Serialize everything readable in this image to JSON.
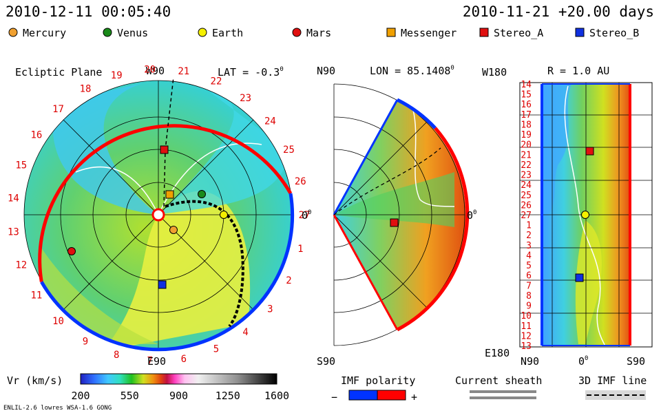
{
  "header": {
    "datetime": "2010-12-11 00:05:40",
    "run_label": "2010-11-21 +20.00 days"
  },
  "legend": [
    {
      "name": "Mercury",
      "color": "#f0a030",
      "shape": "circle"
    },
    {
      "name": "Venus",
      "color": "#1a8a1a",
      "shape": "circle"
    },
    {
      "name": "Earth",
      "color": "#f5f000",
      "shape": "circle"
    },
    {
      "name": "Mars",
      "color": "#e01010",
      "shape": "circle"
    },
    {
      "name": "Messenger",
      "color": "#f0a000",
      "shape": "square"
    },
    {
      "name": "Stereo_A",
      "color": "#e01010",
      "shape": "square"
    },
    {
      "name": "Stereo_B",
      "color": "#1030e0",
      "shape": "square"
    }
  ],
  "panels": {
    "ecliptic": {
      "title": "Ecliptic Plane",
      "top": "W90",
      "bottom": "E90",
      "right": "0",
      "right_sup": "0",
      "lat_label": "LAT = -0.3",
      "lat_sup": "0"
    },
    "meridional": {
      "top": "N90",
      "bottom": "S90",
      "lon_label": "LON = 85.1408",
      "lon_sup": "0",
      "right": "0",
      "right_sup": "0"
    },
    "radial": {
      "top_left": "W180",
      "bottom_left": "E180",
      "r_label": "R = 1.0 AU",
      "x_left": "N90",
      "x_mid": "0",
      "x_mid_sup": "0",
      "x_right": "S90"
    }
  },
  "colorbar": {
    "title": "Vr (km/s)",
    "ticks": [
      "200",
      "550",
      "900",
      "1250",
      "1600"
    ],
    "range": [
      200,
      1600
    ]
  },
  "bottom_legend": {
    "imf_title": "IMF polarity",
    "minus": "−",
    "plus": "+",
    "sheath_title": "Current sheath",
    "imf3d_title": "3D IMF line"
  },
  "footer": {
    "model": "ENLIL-2.6 lowres WSA-1.6 GONG"
  },
  "chart_data": {
    "type": "heatmap",
    "variable": "Vr (km/s)",
    "value_range": [
      200,
      1600
    ],
    "ecliptic_longitude_labels": [
      "1",
      "2",
      "3",
      "4",
      "5",
      "6",
      "7",
      "8",
      "9",
      "10",
      "11",
      "12",
      "13",
      "14",
      "15",
      "16",
      "17",
      "18",
      "19",
      "20",
      "21",
      "22",
      "23",
      "24",
      "25",
      "26",
      "27"
    ],
    "radial_row_labels": [
      "14",
      "15",
      "16",
      "17",
      "18",
      "19",
      "20",
      "21",
      "22",
      "23",
      "24",
      "25",
      "26",
      "27",
      "1",
      "2",
      "3",
      "4",
      "5",
      "6",
      "7",
      "8",
      "9",
      "10",
      "11",
      "12",
      "13"
    ]
  },
  "colors": {
    "red": "#ff0000",
    "blue": "#0033ff",
    "text_red": "#dd0000"
  }
}
